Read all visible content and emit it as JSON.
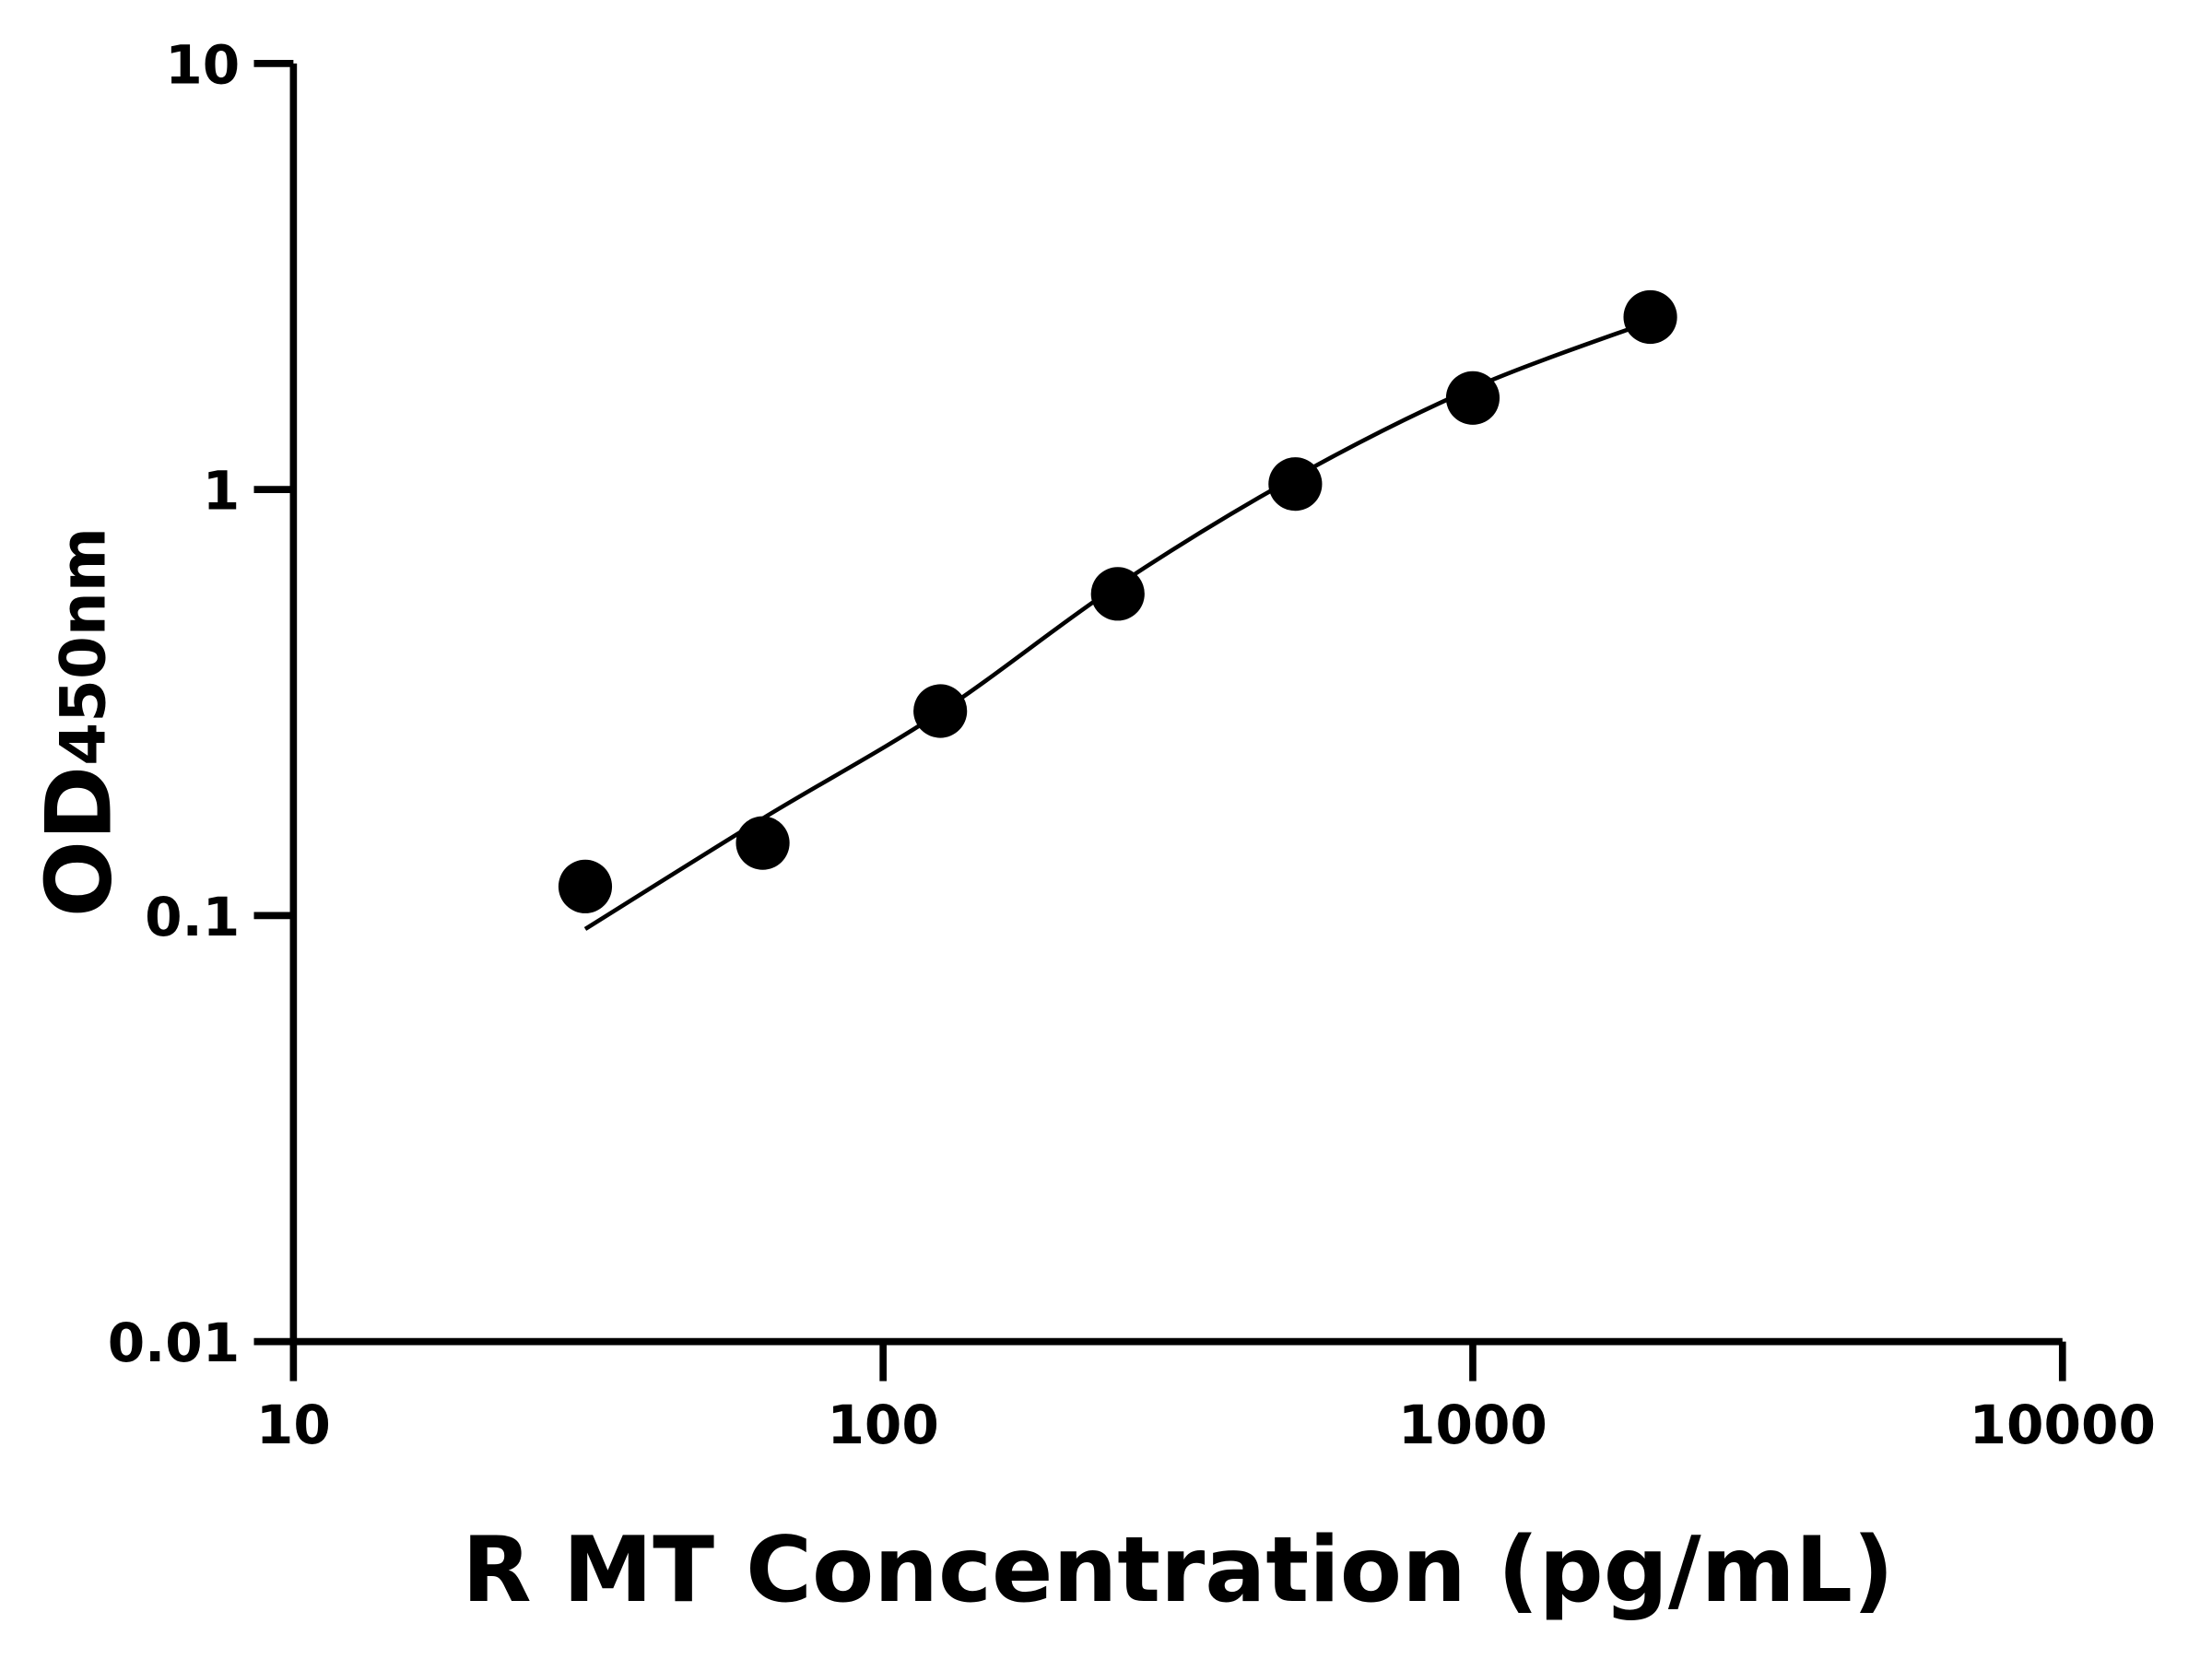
{
  "chart_data": {
    "type": "scatter",
    "title": "",
    "xlabel": "R MT Concentration (pg/mL)",
    "ylabel": {
      "main": "OD",
      "subscript": "450nm"
    },
    "x_scale": "log",
    "y_scale": "log",
    "xlim": [
      10,
      10000
    ],
    "ylim": [
      0.01,
      10
    ],
    "x_ticks": [
      "10",
      "100",
      "1000",
      "10000"
    ],
    "y_ticks": [
      "0.01",
      "0.1",
      "1",
      "10"
    ],
    "grid": false,
    "legend": "none",
    "color": "#000000",
    "series": [
      {
        "type": "scatter",
        "x": [
          31.25,
          62.5,
          125,
          250,
          500,
          1000,
          2000
        ],
        "y": [
          0.117,
          0.148,
          0.302,
          0.569,
          1.03,
          1.64,
          2.54
        ]
      },
      {
        "type": "line",
        "x": [
          31.25,
          62.5,
          125,
          250,
          500,
          1000,
          2000
        ],
        "y": [
          0.093,
          0.169,
          0.3,
          0.596,
          1.07,
          1.73,
          2.48
        ]
      }
    ]
  }
}
